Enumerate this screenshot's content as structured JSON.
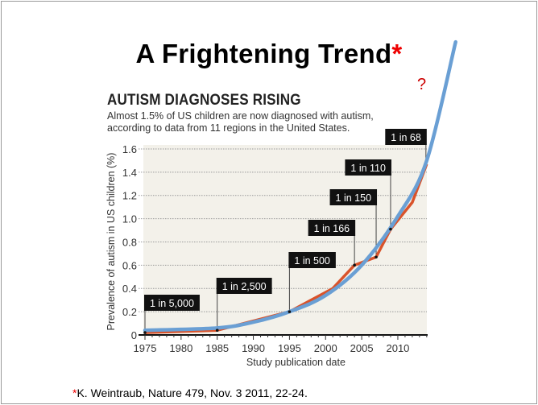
{
  "slide": {
    "title": "A Frightening Trend",
    "title_mark": "*",
    "question_mark": "?",
    "footnote_mark": "*",
    "footnote": "K. Weintraub, Nature 479, Nov. 3 2011, 22-24.",
    "colors": {
      "asterisk": "#e00000",
      "question": "#c00000"
    }
  },
  "chart_data": {
    "type": "line",
    "title": "AUTISM DIAGNOSES RISING",
    "subtitle_lines": [
      "Almost 1.5% of US children are now diagnosed with autism,",
      "according to data from 11 regions in the United States."
    ],
    "xlabel": "Study publication date",
    "ylabel": "Prevalence of autism in US children (%)",
    "xlim": [
      1975,
      2014
    ],
    "ylim": [
      0,
      1.6
    ],
    "x_ticks": [
      "1975",
      "1980",
      "1985",
      "1990",
      "1995",
      "2000",
      "2005",
      "2010"
    ],
    "y_ticks": [
      "0",
      "0.2",
      "0.4",
      "0.6",
      "0.8",
      "1.0",
      "1.2",
      "1.4",
      "1.6"
    ],
    "grid": "horizontal dotted",
    "series": [
      {
        "color": "#d9532b",
        "x": [
          1975,
          1985,
          1995,
          2001,
          2004,
          2007,
          2009,
          2012,
          2014
        ],
        "y": [
          0.02,
          0.04,
          0.2,
          0.4,
          0.6,
          0.67,
          0.91,
          1.14,
          1.47
        ]
      },
      {
        "color": "#6a9fd4",
        "x": [
          1975,
          1985,
          1990,
          1995,
          2000,
          2005,
          2010,
          2014,
          2018
        ],
        "y": [
          0.04,
          0.06,
          0.11,
          0.2,
          0.34,
          0.6,
          1.02,
          1.5,
          2.52
        ]
      }
    ],
    "annotations": [
      {
        "text": "1 in 5,000",
        "x": 1975,
        "y": 0.02
      },
      {
        "text": "1 in 2,500",
        "x": 1985,
        "y": 0.04
      },
      {
        "text": "1 in 500",
        "x": 1995,
        "y": 0.2
      },
      {
        "text": "1 in 166",
        "x": 2004,
        "y": 0.6
      },
      {
        "text": "1 in 150",
        "x": 2007,
        "y": 0.67
      },
      {
        "text": "1 in 110",
        "x": 2009,
        "y": 0.91
      },
      {
        "text": "1 in 68",
        "x": 2014,
        "y": 1.47
      }
    ]
  }
}
